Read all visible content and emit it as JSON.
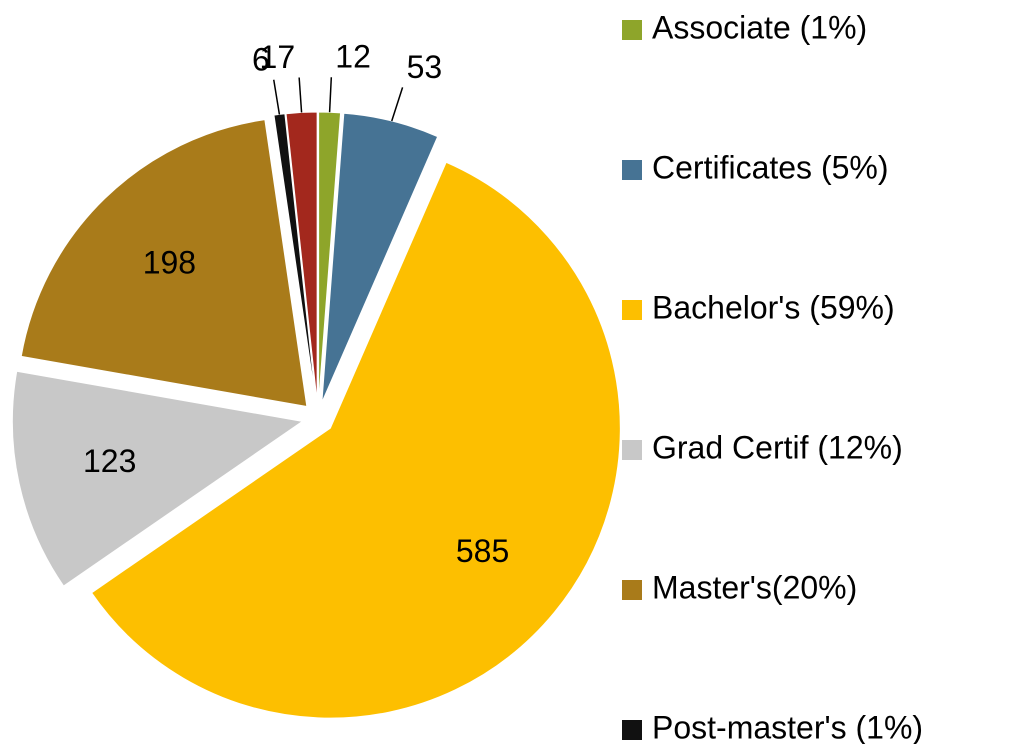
{
  "chart_data": {
    "type": "pie",
    "categories": [
      "Associate (1%)",
      "Certificates (5%)",
      "Bachelor's (59%)",
      "Grad Certif (12%)",
      "Master's(20%)",
      "Post-master's (1%)",
      null
    ],
    "values": [
      12,
      53,
      585,
      123,
      198,
      6,
      17
    ],
    "colors": [
      "#8ea52a",
      "#467394",
      "#fdbf00",
      "#c8c8c8",
      "#a97b1a",
      "#111111",
      "#a3281d"
    ],
    "legend": "right"
  }
}
